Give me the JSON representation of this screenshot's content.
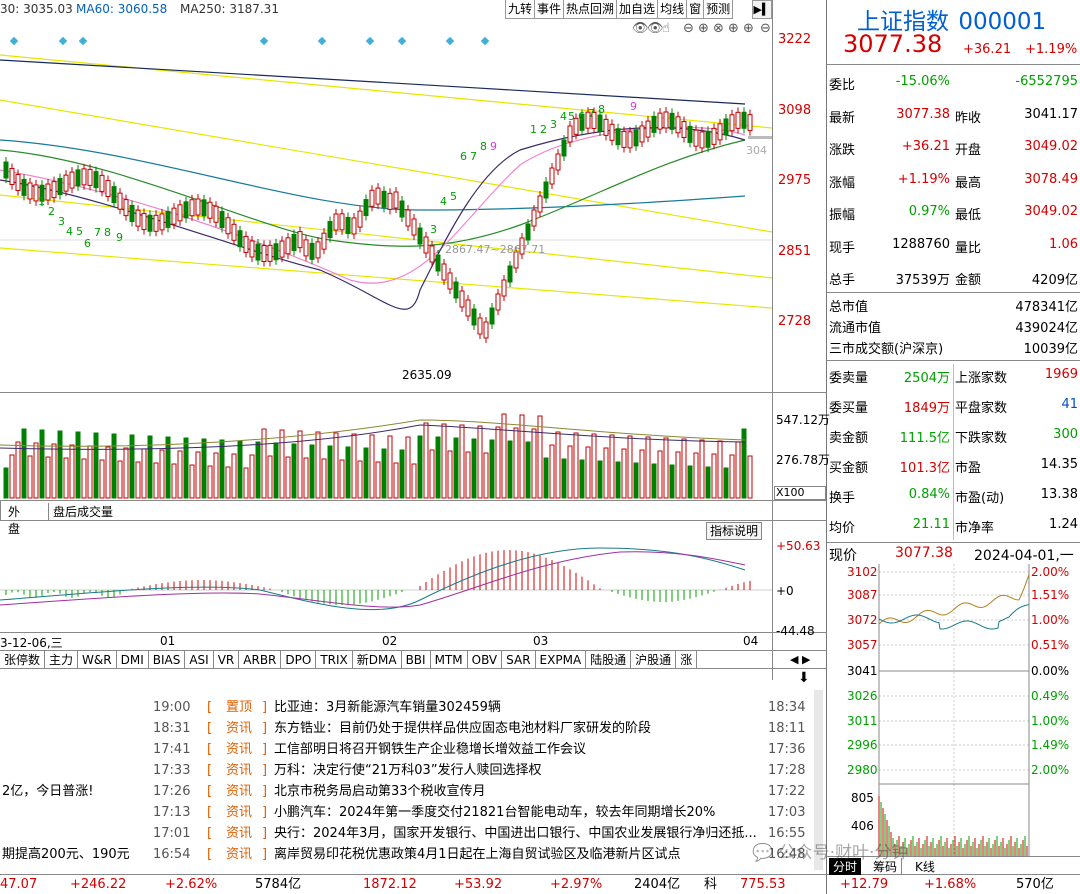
{
  "toolbar": {
    "ma_line": "30: 3035.03",
    "ma60": "MA60: 3060.58",
    "ma250": "MA250: 3187.31",
    "buttons": [
      "九转",
      "事件",
      "热点回溯",
      "加自选",
      "均线",
      "窗",
      "预测"
    ]
  },
  "price_axis": [
    "3222",
    "3098",
    "2975",
    "2851",
    "2728"
  ],
  "chart_annot": {
    "low": "2635.09",
    "mid": "2867.47~2867.71",
    "current_tag": "304"
  },
  "volume_axis": [
    "547.12万",
    "276.78万"
  ],
  "volume_unit": "X100",
  "volume_tabs": [
    "外盘",
    "盘后成交量"
  ],
  "indicator_btn": "指标说明",
  "macd_axis": [
    "+50.63",
    "+0",
    "-44.48"
  ],
  "date_axis": [
    "3-12-06,三",
    "01",
    "02",
    "03",
    "04"
  ],
  "tabs": [
    "张停数",
    "主力",
    "W&R",
    "DMI",
    "BIAS",
    "ASI",
    "VR",
    "ARBR",
    "DPO",
    "TRIX",
    "新DMA",
    "BBI",
    "MTM",
    "OBV",
    "SAR",
    "EXPMA",
    "陆股通",
    "沪股通",
    "涨"
  ],
  "quote": {
    "name": "上证指数",
    "code": "000001",
    "price": "3077.38",
    "change": "+36.21",
    "pct": "+1.19%"
  },
  "rows": [
    {
      "k": "委比",
      "v1": "-15.06%",
      "k2": "",
      "v2": "-6552795",
      "c1": "green",
      "c2": "green"
    },
    {
      "k": "最新",
      "v1": "3077.38",
      "k2": "昨收",
      "v2": "3041.17",
      "c1": "red",
      "c2": "black"
    },
    {
      "k": "涨跌",
      "v1": "+36.21",
      "k2": "开盘",
      "v2": "3049.02",
      "c1": "red",
      "c2": "red"
    },
    {
      "k": "涨幅",
      "v1": "+1.19%",
      "k2": "最高",
      "v2": "3078.49",
      "c1": "red",
      "c2": "red"
    },
    {
      "k": "振幅",
      "v1": "0.97%",
      "k2": "最低",
      "v2": "3049.02",
      "c1": "green",
      "c2": "red"
    },
    {
      "k": "现手",
      "v1": "1288760",
      "k2": "量比",
      "v2": "1.06",
      "c1": "black",
      "c2": "red"
    },
    {
      "k": "总手",
      "v1": "37539万",
      "k2": "金额",
      "v2": "4209亿",
      "c1": "black",
      "c2": "black"
    }
  ],
  "rows2": [
    {
      "k": "总市值",
      "v": "478341亿"
    },
    {
      "k": "流通市值",
      "v": "439024亿"
    },
    {
      "k": "三市成交额(沪深京)",
      "v": "10039亿"
    }
  ],
  "rows3": [
    {
      "k": "委卖量",
      "v1": "2504万",
      "k2": "上涨家数",
      "v2": "1969",
      "c1": "green",
      "c2": "red"
    },
    {
      "k": "委买量",
      "v1": "1849万",
      "k2": "平盘家数",
      "v2": "41",
      "c1": "red",
      "c2": "blue"
    },
    {
      "k": "卖金额",
      "v1": "111.5亿",
      "k2": "下跌家数",
      "v2": "300",
      "c1": "green",
      "c2": "green"
    },
    {
      "k": "买金额",
      "v1": "101.3亿",
      "k2": "市盈",
      "v2": "14.35",
      "c1": "red",
      "c2": "black"
    },
    {
      "k": "换手",
      "v1": "0.84%",
      "k2": "市盈(动)",
      "v2": "13.38",
      "c1": "green",
      "c2": "black"
    },
    {
      "k": "均价",
      "v1": "21.11",
      "k2": "市净率",
      "v2": "1.24",
      "c1": "green",
      "c2": "black"
    }
  ],
  "mini": {
    "label": "现价",
    "price": "3077.38",
    "date": "2024-04-01,一",
    "left_axis": [
      "3102",
      "3087",
      "3072",
      "3057",
      "3041",
      "3026",
      "3011",
      "2996",
      "2980"
    ],
    "right_axis": [
      "2.00%",
      "1.51%",
      "1.00%",
      "0.51%",
      "0.00%",
      "0.49%",
      "1.00%",
      "1.49%",
      "2.00%"
    ],
    "vol_axis": [
      "805",
      "406"
    ],
    "tabs": [
      "分时",
      "筹码",
      "K线"
    ]
  },
  "news": [
    {
      "t1": "19:00",
      "tag": "置顶",
      "title": "比亚迪：3月新能源汽车销量302459辆",
      "t2": "18:34",
      "left": ""
    },
    {
      "t1": "18:31",
      "tag": "资讯",
      "title": "东方锆业：目前仍处于提供样品供应固态电池材料厂家研发的阶段",
      "t2": "18:11",
      "left": ""
    },
    {
      "t1": "17:41",
      "tag": "资讯",
      "title": "工信部明日将召开钢铁生产企业稳增长增效益工作会议",
      "t2": "17:36",
      "left": ""
    },
    {
      "t1": "17:33",
      "tag": "资讯",
      "title": "万科：决定行使“21万科03”发行人赎回选择权",
      "t2": "17:28",
      "left": ""
    },
    {
      "t1": "17:26",
      "tag": "资讯",
      "title": "北京市税务局启动第33个税收宣传月",
      "t2": "17:22",
      "left": "2亿，今日普涨!"
    },
    {
      "t1": "17:13",
      "tag": "资讯",
      "title": "小鹏汽车：2024年第一季度交付21821台智能电动车，较去年同期增长20%",
      "t2": "17:03",
      "left": ""
    },
    {
      "t1": "17:01",
      "tag": "资讯",
      "title": "央行：2024年3月，国家开发银行、中国进出口银行、中国农业发展银行净归还抵...",
      "t2": "16:55",
      "left": ""
    },
    {
      "t1": "16:54",
      "tag": "资讯",
      "title": "离岸贸易印花税优惠政策4月1日起在上海自贸试验区及临港新片区试点",
      "t2": "16:48",
      "left": "期提高200元、190元"
    }
  ],
  "bottom": {
    "a": "47.07",
    "b": "+246.22",
    "c": "+2.62%",
    "d": "5784亿",
    "e": "1872.12",
    "f": "+53.92",
    "g": "+2.97%",
    "h": "2404亿",
    "i": "科",
    "j": "775.53",
    "k": "+12.79",
    "l": "+1.68%",
    "m": "570亿"
  },
  "watermark": "公众号·财叶·分钟"
}
